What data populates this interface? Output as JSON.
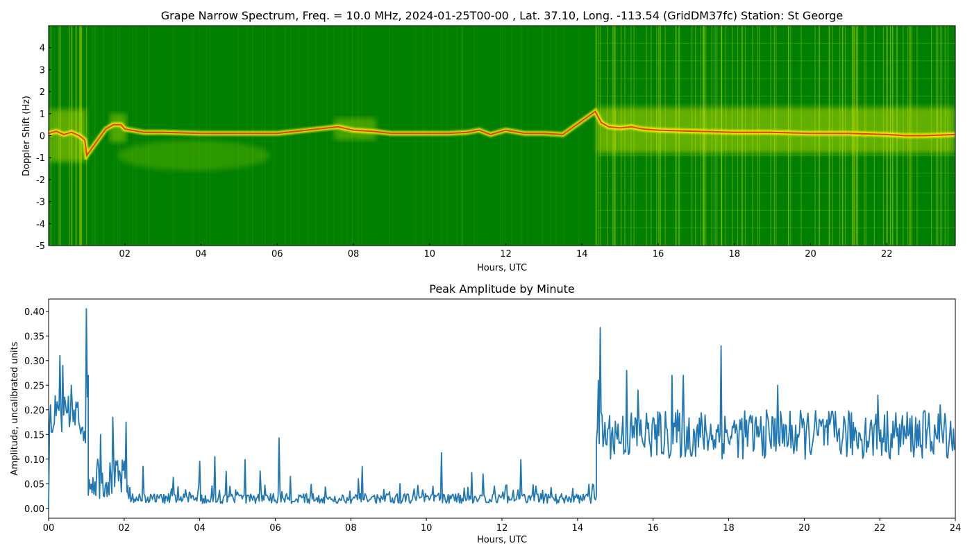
{
  "chart_data": [
    {
      "type": "heatmap",
      "title": "Grape Narrow Spectrum, Freq. = 10.0 MHz, 2024-01-25T00-00 , Lat.  37.10, Long. -113.54 (GridDM37fc) Station: St George",
      "xlabel": "Hours, UTC",
      "ylabel": "Doppler Shift (Hz)",
      "xlim": [
        0,
        23.8
      ],
      "ylim": [
        -5,
        5
      ],
      "x_ticks": [
        "02",
        "04",
        "06",
        "08",
        "10",
        "12",
        "14",
        "16",
        "18",
        "20",
        "22"
      ],
      "x_tick_values": [
        2,
        4,
        6,
        8,
        10,
        12,
        14,
        16,
        18,
        20,
        22
      ],
      "y_ticks": [
        "-5",
        "-4",
        "-3",
        "-2",
        "-1",
        "0",
        "1",
        "2",
        "3",
        "4"
      ],
      "y_tick_values": [
        -5,
        -4,
        -3,
        -2,
        -1,
        0,
        1,
        2,
        3,
        4
      ],
      "colors": {
        "background": "#007f00",
        "mid": "#7fbf00",
        "high": "#ffff00",
        "peak": "#ff3000"
      },
      "doppler_trace": {
        "x": [
          0,
          0.2,
          0.4,
          0.6,
          0.8,
          0.95,
          1.0,
          1.5,
          1.7,
          1.9,
          2.0,
          2.5,
          3,
          4,
          5,
          5.5,
          6.0,
          7.6,
          8.0,
          8.5,
          9,
          10,
          10.5,
          11,
          11.3,
          11.6,
          12,
          12.5,
          13,
          13.5,
          14.35,
          14.5,
          14.7,
          15,
          15.3,
          15.6,
          16,
          17,
          18,
          19,
          20,
          21,
          22,
          22.5,
          23,
          23.8
        ],
        "y": [
          0.1,
          0.2,
          0.05,
          0.15,
          0.0,
          -0.2,
          -0.9,
          0.3,
          0.5,
          0.5,
          0.3,
          0.15,
          0.15,
          0.1,
          0.1,
          0.1,
          0.1,
          0.4,
          0.25,
          0.2,
          0.1,
          0.1,
          0.1,
          0.15,
          0.25,
          0.05,
          0.25,
          0.1,
          0.1,
          0.05,
          1.1,
          0.6,
          0.4,
          0.35,
          0.4,
          0.3,
          0.25,
          0.2,
          0.15,
          0.15,
          0.1,
          0.1,
          0.05,
          0.0,
          0.0,
          0.05
        ]
      }
    },
    {
      "type": "line",
      "title": "Peak Amplitude by Minute",
      "xlabel": "Hours, UTC",
      "ylabel": "Amplitude, uncalibrated units",
      "xlim": [
        0,
        24
      ],
      "ylim": [
        -0.02,
        0.425
      ],
      "x_ticks": [
        "00",
        "02",
        "04",
        "06",
        "08",
        "10",
        "12",
        "14",
        "16",
        "18",
        "20",
        "22",
        "24"
      ],
      "x_tick_values": [
        0,
        2,
        4,
        6,
        8,
        10,
        12,
        14,
        16,
        18,
        20,
        22,
        24
      ],
      "y_ticks": [
        "0.00",
        "0.05",
        "0.10",
        "0.15",
        "0.20",
        "0.25",
        "0.30",
        "0.35",
        "0.40"
      ],
      "y_tick_values": [
        0,
        0.05,
        0.1,
        0.15,
        0.2,
        0.25,
        0.3,
        0.35,
        0.4
      ],
      "line_color": "#1f77b4",
      "segments": [
        {
          "x_start": 0.0,
          "x_end": 1.05,
          "base": 0.18,
          "spread": 0.05,
          "peaks": [
            [
              0.0,
              0.0
            ],
            [
              0.05,
              0.21
            ],
            [
              0.3,
              0.31
            ],
            [
              0.37,
              0.29
            ],
            [
              0.6,
              0.25
            ],
            [
              1.0,
              0.405
            ],
            [
              1.05,
              0.27
            ]
          ]
        },
        {
          "x_start": 1.05,
          "x_end": 2.1,
          "base": 0.06,
          "spread": 0.04,
          "peaks": [
            [
              1.3,
              0.1
            ],
            [
              1.38,
              0.15
            ],
            [
              1.7,
              0.185
            ],
            [
              2.05,
              0.175
            ]
          ]
        },
        {
          "x_start": 2.1,
          "x_end": 14.5,
          "base": 0.02,
          "spread": 0.01,
          "peaks": [
            [
              2.5,
              0.085
            ],
            [
              3.3,
              0.063
            ],
            [
              4.0,
              0.096
            ],
            [
              4.4,
              0.105
            ],
            [
              4.7,
              0.075
            ],
            [
              5.2,
              0.099
            ],
            [
              5.6,
              0.076
            ],
            [
              6.1,
              0.143
            ],
            [
              6.4,
              0.065
            ],
            [
              8.2,
              0.06
            ],
            [
              8.3,
              0.085
            ],
            [
              9.3,
              0.05
            ],
            [
              10.4,
              0.113
            ],
            [
              11.2,
              0.073
            ],
            [
              11.5,
              0.07
            ],
            [
              12.5,
              0.099
            ],
            [
              12.9,
              0.045
            ],
            [
              13.8,
              0.02
            ]
          ]
        },
        {
          "x_start": 14.5,
          "x_end": 24.0,
          "base": 0.15,
          "spread": 0.05,
          "peaks": [
            [
              14.55,
              0.26
            ],
            [
              14.6,
              0.367
            ],
            [
              15.3,
              0.28
            ],
            [
              15.6,
              0.24
            ],
            [
              16.5,
              0.27
            ],
            [
              16.8,
              0.27
            ],
            [
              17.8,
              0.33
            ],
            [
              19.3,
              0.25
            ],
            [
              21.95,
              0.23
            ],
            [
              23.6,
              0.21
            ],
            [
              24.0,
              0.12
            ]
          ]
        }
      ]
    }
  ]
}
